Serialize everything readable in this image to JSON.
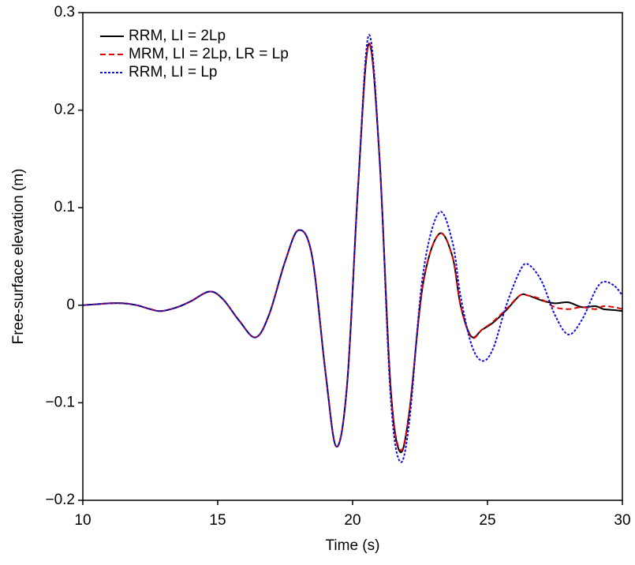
{
  "chart_data": {
    "type": "line",
    "xlabel": "Time (s)",
    "ylabel": "Free-surface elevation (m)",
    "x": [
      10,
      10.5,
      11,
      11.5,
      12,
      12.5,
      12.9,
      13.5,
      14,
      14.7,
      15.2,
      15.8,
      16.4,
      16.9,
      17.5,
      18.0,
      18.5,
      19.0,
      19.4,
      19.8,
      20.2,
      20.6,
      21.0,
      21.4,
      21.75,
      22.1,
      22.6,
      23.2,
      23.7,
      24.0,
      24.4,
      24.8,
      25.2,
      25.7,
      26.2,
      26.5,
      27.0,
      27.5,
      28.0,
      28.5,
      29.0,
      29.3,
      29.7,
      30
    ],
    "series": [
      {
        "name": "RRM, LI = 2Lp",
        "color": "#000000",
        "dash": "none",
        "values": [
          0,
          0.001,
          0.002,
          0.002,
          0.0,
          -0.004,
          -0.006,
          -0.002,
          0.004,
          0.014,
          0.006,
          -0.016,
          -0.033,
          -0.01,
          0.045,
          0.077,
          0.05,
          -0.07,
          -0.145,
          -0.08,
          0.12,
          0.268,
          0.15,
          -0.08,
          -0.15,
          -0.11,
          0.02,
          0.073,
          0.05,
          0.0,
          -0.032,
          -0.025,
          -0.018,
          -0.005,
          0.01,
          0.01,
          0.005,
          0.002,
          0.003,
          -0.002,
          -0.001,
          -0.004,
          -0.005,
          -0.006
        ]
      },
      {
        "name": "MRM, LI = 2Lp, LR = Lp",
        "color": "#e00000",
        "dash": "7,4",
        "values": [
          0,
          0.001,
          0.002,
          0.002,
          0.0,
          -0.004,
          -0.006,
          -0.002,
          0.004,
          0.014,
          0.006,
          -0.016,
          -0.033,
          -0.01,
          0.045,
          0.077,
          0.05,
          -0.07,
          -0.145,
          -0.08,
          0.12,
          0.268,
          0.15,
          -0.08,
          -0.148,
          -0.11,
          0.02,
          0.073,
          0.05,
          0.0,
          -0.033,
          -0.025,
          -0.017,
          -0.004,
          0.01,
          0.01,
          0.006,
          -0.002,
          -0.004,
          -0.002,
          -0.004,
          -0.001,
          -0.002,
          -0.004
        ]
      },
      {
        "name": "RRM, LI = Lp",
        "color": "#1010e0",
        "dash": "3,2",
        "values": [
          0,
          0.001,
          0.002,
          0.002,
          0.0,
          -0.004,
          -0.006,
          -0.002,
          0.004,
          0.014,
          0.006,
          -0.016,
          -0.033,
          -0.01,
          0.045,
          0.077,
          0.05,
          -0.07,
          -0.145,
          -0.08,
          0.12,
          0.277,
          0.15,
          -0.09,
          -0.16,
          -0.12,
          0.03,
          0.095,
          0.065,
          0.01,
          -0.04,
          -0.057,
          -0.045,
          0.0,
          0.035,
          0.042,
          0.025,
          -0.01,
          -0.03,
          -0.015,
          0.015,
          0.024,
          0.02,
          0.01
        ]
      }
    ],
    "xlim": [
      10,
      30
    ],
    "ylim": [
      -0.2,
      0.3
    ],
    "xticks": [
      10,
      15,
      20,
      25,
      30
    ],
    "yticks": [
      {
        "value": -0.2,
        "label": "−0.2"
      },
      {
        "value": -0.1,
        "label": "−0.1"
      },
      0,
      0.1,
      0.2,
      0.3
    ],
    "legend": "upper-left"
  }
}
